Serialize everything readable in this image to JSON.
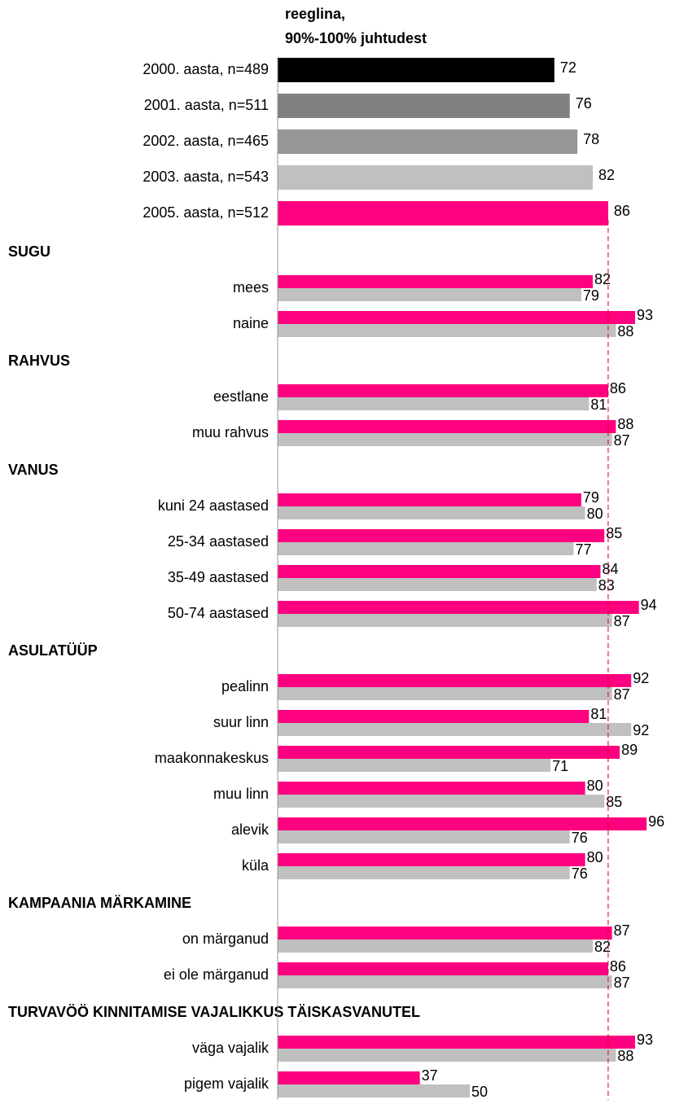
{
  "chart_data": {
    "type": "bar",
    "orientation": "horizontal",
    "column_header": [
      "reeglina,",
      "90%-100% juhtudest"
    ],
    "xlim": [
      0,
      100
    ],
    "overall": {
      "categories": [
        "2000. aasta, n=489",
        "2001. aasta, n=511",
        "2002. aasta, n=465",
        "2003. aasta, n=543",
        "2005. aasta, n=512"
      ],
      "values": [
        72,
        76,
        78,
        82,
        86
      ],
      "colors": [
        "#000000",
        "#808080",
        "#969696",
        "#c0c0c0",
        "#ff0080"
      ]
    },
    "series_colors": [
      "#ff0080",
      "#c0c0c0"
    ],
    "groups": [
      {
        "title": "SUGU",
        "categories": [
          "mees",
          "naine"
        ],
        "series": [
          [
            82,
            93
          ],
          [
            79,
            88
          ]
        ]
      },
      {
        "title": "RAHVUS",
        "categories": [
          "eestlane",
          "muu rahvus"
        ],
        "series": [
          [
            86,
            88
          ],
          [
            81,
            87
          ]
        ]
      },
      {
        "title": "VANUS",
        "categories": [
          "kuni 24 aastased",
          "25-34 aastased",
          "35-49 aastased",
          "50-74 aastased"
        ],
        "series": [
          [
            79,
            85,
            84,
            94
          ],
          [
            80,
            77,
            83,
            87
          ]
        ]
      },
      {
        "title": "ASULATÜÜP",
        "categories": [
          "pealinn",
          "suur linn",
          "maakonnakeskus",
          "muu linn",
          "alevik",
          "küla"
        ],
        "series": [
          [
            92,
            81,
            89,
            80,
            96,
            80
          ],
          [
            87,
            92,
            71,
            85,
            76,
            76
          ]
        ]
      },
      {
        "title": "KAMPAANIA MÄRKAMINE",
        "categories": [
          "on märganud",
          "ei ole märganud"
        ],
        "series": [
          [
            87,
            86
          ],
          [
            82,
            87
          ]
        ]
      },
      {
        "title": "TURVAVÖÖ KINNITAMISE VAJALIKKUS TÄISKASVANUTEL",
        "categories": [
          "väga vajalik",
          "pigem vajalik"
        ],
        "series": [
          [
            93,
            37
          ],
          [
            88,
            50
          ]
        ]
      }
    ]
  }
}
